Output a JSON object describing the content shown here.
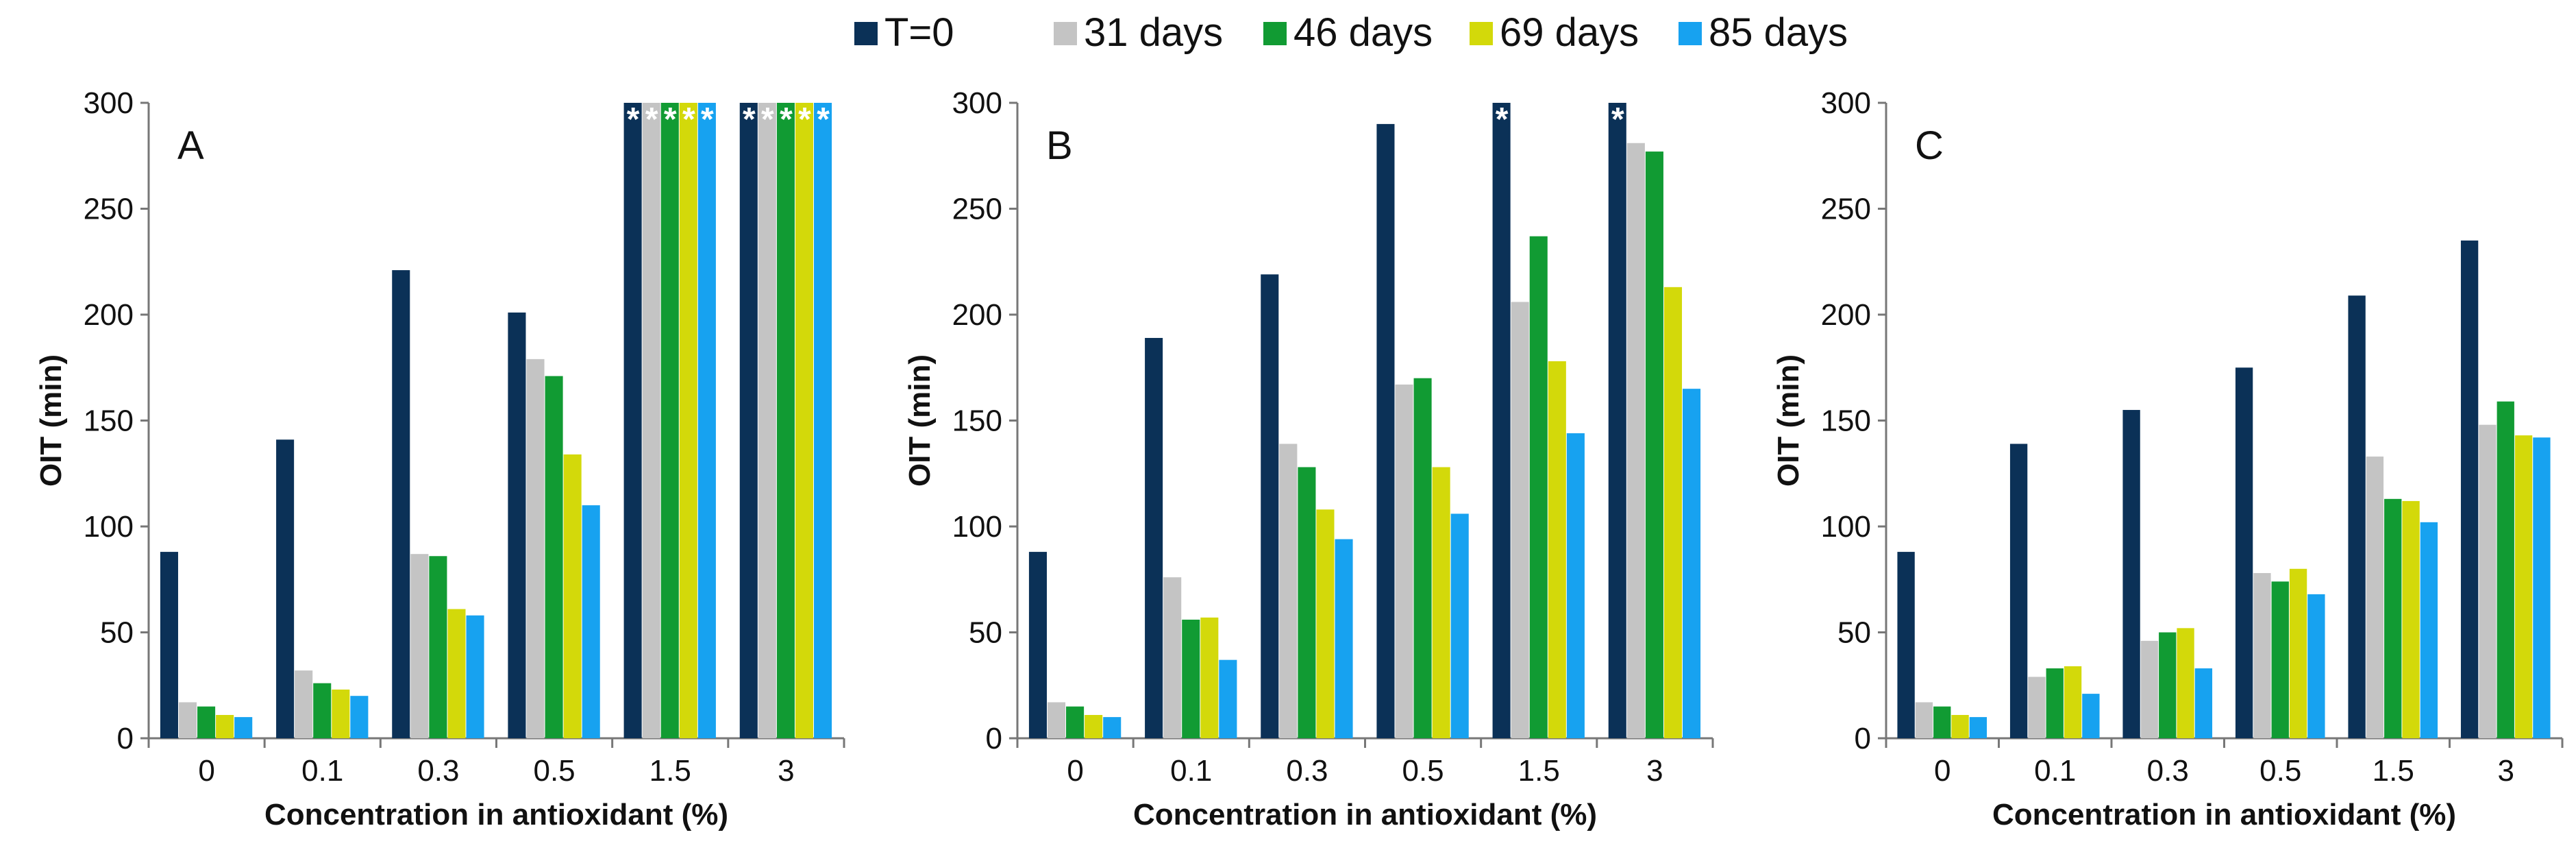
{
  "colors": {
    "t0": "#0b3157",
    "d31": "#c4c4c4",
    "d46": "#119b33",
    "d69": "#d3d90a",
    "d85": "#17a2f0"
  },
  "legend": [
    {
      "label": "T=0",
      "color_key": "t0"
    },
    {
      "label": "31 days",
      "color_key": "d31"
    },
    {
      "label": "46 days",
      "color_key": "d46"
    },
    {
      "label": "69 days",
      "color_key": "d69"
    },
    {
      "label": "85 days",
      "color_key": "d85"
    }
  ],
  "chart_data": [
    {
      "type": "bar",
      "panel": "A",
      "categories": [
        "0",
        "0.1",
        "0.3",
        "0.5",
        "1.5",
        "3"
      ],
      "xlabel": "Concentration in antioxidant (%)",
      "ylabel": "OIT (min)",
      "ylim": [
        0,
        300
      ],
      "yticks": [
        "0",
        "50",
        "100",
        "150",
        "200",
        "250",
        "300"
      ],
      "series": [
        {
          "name": "T=0",
          "values": [
            88,
            141,
            221,
            201,
            300,
            300
          ],
          "starred": [
            false,
            false,
            false,
            false,
            true,
            true
          ]
        },
        {
          "name": "31 days",
          "values": [
            17,
            32,
            87,
            179,
            300,
            300
          ],
          "starred": [
            false,
            false,
            false,
            false,
            true,
            true
          ]
        },
        {
          "name": "46 days",
          "values": [
            15,
            26,
            86,
            171,
            300,
            300
          ],
          "starred": [
            false,
            false,
            false,
            false,
            true,
            true
          ]
        },
        {
          "name": "69 days",
          "values": [
            11,
            23,
            61,
            134,
            300,
            300
          ],
          "starred": [
            false,
            false,
            false,
            false,
            true,
            true
          ]
        },
        {
          "name": "85 days",
          "values": [
            10,
            20,
            58,
            110,
            300,
            300
          ],
          "starred": [
            false,
            false,
            false,
            false,
            true,
            true
          ]
        }
      ],
      "star_symbol": "*"
    },
    {
      "type": "bar",
      "panel": "B",
      "categories": [
        "0",
        "0.1",
        "0.3",
        "0.5",
        "1.5",
        "3"
      ],
      "xlabel": "Concentration in antioxidant (%)",
      "ylabel": "OIT (min)",
      "ylim": [
        0,
        300
      ],
      "yticks": [
        "0",
        "50",
        "100",
        "150",
        "200",
        "250",
        "300"
      ],
      "series": [
        {
          "name": "T=0",
          "values": [
            88,
            189,
            219,
            290,
            300,
            300
          ],
          "starred": [
            false,
            false,
            false,
            false,
            true,
            true
          ]
        },
        {
          "name": "31 days",
          "values": [
            17,
            76,
            139,
            167,
            206,
            281
          ],
          "starred": [
            false,
            false,
            false,
            false,
            false,
            false
          ]
        },
        {
          "name": "46 days",
          "values": [
            15,
            56,
            128,
            170,
            237,
            277
          ],
          "starred": [
            false,
            false,
            false,
            false,
            false,
            false
          ]
        },
        {
          "name": "69 days",
          "values": [
            11,
            57,
            108,
            128,
            178,
            213
          ],
          "starred": [
            false,
            false,
            false,
            false,
            false,
            false
          ]
        },
        {
          "name": "85 days",
          "values": [
            10,
            37,
            94,
            106,
            144,
            165
          ],
          "starred": [
            false,
            false,
            false,
            false,
            false,
            false
          ]
        }
      ],
      "star_symbol": "*"
    },
    {
      "type": "bar",
      "panel": "C",
      "categories": [
        "0",
        "0.1",
        "0.3",
        "0.5",
        "1.5",
        "3"
      ],
      "xlabel": "Concentration in antioxidant (%)",
      "ylabel": "OIT (min)",
      "ylim": [
        0,
        300
      ],
      "yticks": [
        "0",
        "50",
        "100",
        "150",
        "200",
        "250",
        "300"
      ],
      "series": [
        {
          "name": "T=0",
          "values": [
            88,
            139,
            155,
            175,
            209,
            235
          ],
          "starred": [
            false,
            false,
            false,
            false,
            false,
            false
          ]
        },
        {
          "name": "31 days",
          "values": [
            17,
            29,
            46,
            78,
            133,
            148
          ],
          "starred": [
            false,
            false,
            false,
            false,
            false,
            false
          ]
        },
        {
          "name": "46 days",
          "values": [
            15,
            33,
            50,
            74,
            113,
            159
          ],
          "starred": [
            false,
            false,
            false,
            false,
            false,
            false
          ]
        },
        {
          "name": "69 days",
          "values": [
            11,
            34,
            52,
            80,
            112,
            143
          ],
          "starred": [
            false,
            false,
            false,
            false,
            false,
            false
          ]
        },
        {
          "name": "85 days",
          "values": [
            10,
            21,
            33,
            68,
            102,
            142
          ],
          "starred": [
            false,
            false,
            false,
            false,
            false,
            false
          ]
        }
      ],
      "star_symbol": "*"
    }
  ]
}
